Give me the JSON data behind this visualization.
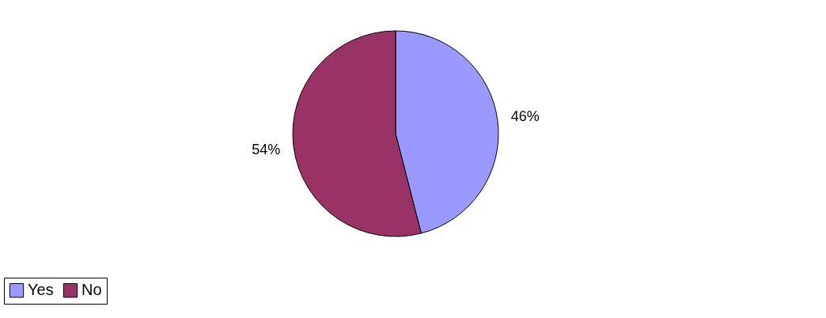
{
  "chart_data": {
    "type": "pie",
    "categories": [
      "Yes",
      "No"
    ],
    "values": [
      46,
      54
    ],
    "colors": [
      "#9999ff",
      "#993366"
    ],
    "value_labels": [
      "46%",
      "54%"
    ],
    "legend": "bottom"
  }
}
